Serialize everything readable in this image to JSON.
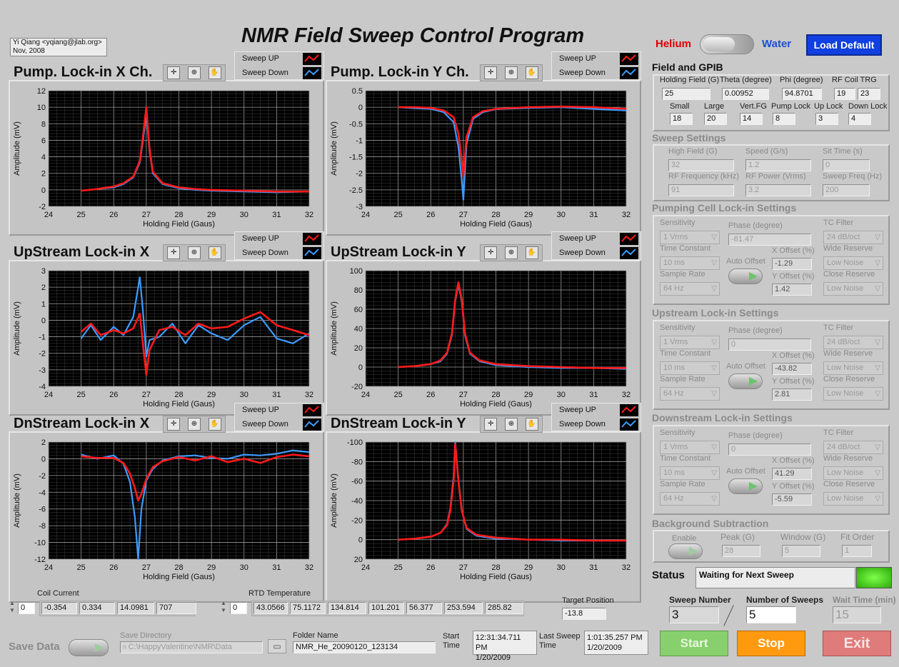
{
  "author": {
    "line1": "Yi Qiang <yqiang@jlab.org>",
    "line2": "Nov, 2008"
  },
  "app_title": "NMR Field Sweep Control Program",
  "mode": {
    "left": "Helium",
    "right": "Water",
    "left_color": "#e00000",
    "right_color": "#1a4fd0"
  },
  "load_default": "Load Default",
  "legend": {
    "up": "Sweep UP",
    "down": "Sweep Down",
    "up_color": "#ff1a1a",
    "down_color": "#3c9cff"
  },
  "graphs": [
    {
      "title": "Pump. Lock-in X Ch.",
      "xlabel": "Holding Field (Gaus)",
      "ylabel": "Amplitude (mV)"
    },
    {
      "title": "Pump. Lock-in Y Ch.",
      "xlabel": "Holding Field (Gaus)",
      "ylabel": "Amplitude (mV)"
    },
    {
      "title": "UpStream Lock-in X",
      "xlabel": "Holding Field (Gaus)",
      "ylabel": "Amplitude (mV)"
    },
    {
      "title": "UpStream Lock-in Y",
      "xlabel": "Holding Field (Gaus)",
      "ylabel": "Amplitude (mV)"
    },
    {
      "title": "DnStream Lock-in X",
      "xlabel": "Holding Field (Gaus)",
      "ylabel": "Amplitude (mV)"
    },
    {
      "title": "DnStream Lock-in Y",
      "xlabel": "Holding Field (Gaus)",
      "ylabel": "Amplitude (mV)"
    }
  ],
  "chart_data": [
    {
      "type": "line",
      "title": "Pump. Lock-in X Ch.",
      "xlabel": "Holding Field (Gaus)",
      "ylabel": "Amplitude (mV)",
      "xlim": [
        24,
        32
      ],
      "ylim": [
        -2,
        12
      ],
      "xticks": [
        24,
        25,
        26,
        27,
        28,
        29,
        30,
        31,
        32
      ],
      "yticks": [
        -2,
        0,
        2,
        4,
        6,
        8,
        10,
        12
      ],
      "series": [
        {
          "name": "Sweep UP",
          "x": [
            25,
            25.5,
            26,
            26.3,
            26.6,
            26.8,
            26.9,
            27,
            27.1,
            27.2,
            27.5,
            28,
            28.5,
            29,
            30,
            31,
            32
          ],
          "y": [
            -0.1,
            0.1,
            0.4,
            0.8,
            1.6,
            3.5,
            6.5,
            10,
            5,
            2.2,
            0.8,
            0.3,
            0.1,
            0,
            -0.1,
            -0.2,
            -0.2
          ]
        },
        {
          "name": "Sweep Down",
          "x": [
            25,
            25.5,
            26,
            26.3,
            26.6,
            26.8,
            26.9,
            27,
            27.1,
            27.2,
            27.5,
            28,
            28.5,
            29,
            30,
            31,
            32
          ],
          "y": [
            -0.1,
            0.1,
            0.3,
            0.7,
            1.5,
            3.3,
            6,
            9.2,
            4.7,
            2,
            0.7,
            0.2,
            0,
            -0.1,
            -0.2,
            -0.3,
            -0.2
          ]
        }
      ]
    },
    {
      "type": "line",
      "title": "Pump. Lock-in Y Ch.",
      "xlabel": "Holding Field (Gaus)",
      "ylabel": "Amplitude (mV)",
      "xlim": [
        24,
        32
      ],
      "ylim": [
        -3,
        0.5
      ],
      "xticks": [
        24,
        25,
        26,
        27,
        28,
        29,
        30,
        31,
        32
      ],
      "yticks": [
        -3,
        -2.5,
        -2,
        -1.5,
        -1,
        -0.5,
        0,
        0.5
      ],
      "series": [
        {
          "name": "Sweep UP",
          "x": [
            25,
            25.5,
            26,
            26.4,
            26.7,
            26.85,
            26.95,
            27,
            27.1,
            27.3,
            27.6,
            28,
            29,
            30,
            31,
            32
          ],
          "y": [
            0,
            0,
            -0.02,
            -0.1,
            -0.3,
            -0.8,
            -1.6,
            -2.1,
            -0.9,
            -0.3,
            -0.12,
            -0.05,
            0,
            0.02,
            0,
            -0.05
          ]
        },
        {
          "name": "Sweep Down",
          "x": [
            25,
            25.5,
            26,
            26.4,
            26.7,
            26.85,
            26.95,
            27,
            27.1,
            27.3,
            27.6,
            28,
            29,
            30,
            31,
            32
          ],
          "y": [
            0,
            -0.03,
            -0.05,
            -0.15,
            -0.45,
            -1.2,
            -2.2,
            -2.8,
            -1.1,
            -0.35,
            -0.15,
            -0.06,
            -0.02,
            0,
            -0.05,
            -0.1
          ]
        }
      ]
    },
    {
      "type": "line",
      "title": "UpStream Lock-in X",
      "xlabel": "Holding Field (Gaus)",
      "ylabel": "Amplitude (mV)",
      "xlim": [
        24,
        32
      ],
      "ylim": [
        -4,
        3
      ],
      "xticks": [
        24,
        25,
        26,
        27,
        28,
        29,
        30,
        31,
        32
      ],
      "yticks": [
        -4,
        -3,
        -2,
        -1,
        0,
        1,
        2,
        3
      ],
      "series": [
        {
          "name": "Sweep UP",
          "x": [
            25,
            25.3,
            25.6,
            26,
            26.3,
            26.6,
            26.8,
            26.9,
            27,
            27.1,
            27.4,
            27.8,
            28.2,
            28.6,
            29,
            29.5,
            30,
            30.5,
            31,
            31.5,
            32
          ],
          "y": [
            -0.7,
            -0.2,
            -0.9,
            -0.6,
            -0.8,
            -0.5,
            0.4,
            -1.5,
            -3.3,
            -1.8,
            -0.6,
            -0.4,
            -0.9,
            -0.2,
            -0.5,
            -0.4,
            0.1,
            0.5,
            -0.3,
            -0.6,
            -0.9
          ]
        },
        {
          "name": "Sweep Down",
          "x": [
            25,
            25.3,
            25.6,
            26,
            26.3,
            26.6,
            26.8,
            26.9,
            27,
            27.1,
            27.4,
            27.8,
            28.2,
            28.6,
            29,
            29.5,
            30,
            30.5,
            31,
            31.5,
            32
          ],
          "y": [
            -1.1,
            -0.3,
            -1.2,
            -0.4,
            -0.9,
            0.2,
            2.6,
            0.5,
            -2.2,
            -1.2,
            -1,
            -0.2,
            -1.4,
            -0.3,
            -0.8,
            -1.2,
            -0.3,
            0.2,
            -1.1,
            -1.4,
            -0.8
          ]
        }
      ]
    },
    {
      "type": "line",
      "title": "UpStream Lock-in Y",
      "xlabel": "Holding Field (Gaus)",
      "ylabel": "Amplitude (mV)",
      "xlim": [
        24,
        32
      ],
      "ylim": [
        -20,
        100
      ],
      "xticks": [
        24,
        25,
        26,
        27,
        28,
        29,
        30,
        31,
        32
      ],
      "yticks": [
        -20,
        0,
        20,
        40,
        60,
        80,
        100
      ],
      "series": [
        {
          "name": "Sweep UP",
          "x": [
            25,
            25.5,
            26,
            26.3,
            26.5,
            26.65,
            26.75,
            26.85,
            26.95,
            27.05,
            27.2,
            27.5,
            28,
            29,
            30,
            31,
            32
          ],
          "y": [
            0,
            1,
            3,
            7,
            15,
            35,
            70,
            88,
            70,
            35,
            15,
            7,
            3,
            1,
            0,
            -1,
            -1
          ]
        },
        {
          "name": "Sweep Down",
          "x": [
            25,
            25.5,
            26,
            26.3,
            26.5,
            26.65,
            26.75,
            26.85,
            26.95,
            27.05,
            27.2,
            27.5,
            28,
            29,
            30,
            31,
            32
          ],
          "y": [
            0,
            1,
            3,
            6,
            14,
            33,
            68,
            86,
            68,
            33,
            14,
            6,
            2,
            0,
            -1,
            -1,
            -2
          ]
        }
      ]
    },
    {
      "type": "line",
      "title": "DnStream Lock-in X",
      "xlabel": "Holding Field (Gaus)",
      "ylabel": "Amplitude (mV)",
      "xlim": [
        24,
        32
      ],
      "ylim": [
        -12,
        2
      ],
      "xticks": [
        24,
        25,
        26,
        27,
        28,
        29,
        30,
        31,
        32
      ],
      "yticks": [
        -12,
        -10,
        -8,
        -6,
        -4,
        -2,
        0,
        2
      ],
      "series": [
        {
          "name": "Sweep UP",
          "x": [
            25,
            25.5,
            26,
            26.3,
            26.5,
            26.65,
            26.75,
            26.85,
            27,
            27.2,
            27.5,
            28,
            28.5,
            29,
            29.5,
            30,
            30.5,
            31,
            31.5,
            32
          ],
          "y": [
            0.3,
            0.1,
            0.1,
            -0.5,
            -1.8,
            -3.5,
            -5,
            -4.2,
            -2.4,
            -1,
            -0.3,
            0.2,
            -0.2,
            0.3,
            -0.4,
            0,
            -0.5,
            0.2,
            0.5,
            0.3
          ]
        },
        {
          "name": "Sweep Down",
          "x": [
            25,
            25.5,
            26,
            26.3,
            26.5,
            26.65,
            26.75,
            26.85,
            27,
            27.2,
            27.5,
            28,
            28.5,
            29,
            29.5,
            30,
            30.5,
            31,
            31.5,
            32
          ],
          "y": [
            0.5,
            0,
            0.4,
            -0.6,
            -2.8,
            -7,
            -12,
            -6,
            -2.6,
            -1.2,
            -0.2,
            0.3,
            0.4,
            0.1,
            0,
            0.5,
            0.4,
            0.6,
            1,
            0.8
          ]
        }
      ]
    },
    {
      "type": "line",
      "title": "DnStream Lock-in Y",
      "xlabel": "Holding Field (Gaus)",
      "ylabel": "Amplitude (mV)",
      "xlim": [
        24,
        32
      ],
      "ylim": [
        20,
        -100
      ],
      "xticks": [
        24,
        25,
        26,
        27,
        28,
        29,
        30,
        31,
        32
      ],
      "yticks": [
        20,
        0,
        -20,
        -40,
        -60,
        -80,
        -100
      ],
      "series": [
        {
          "name": "Sweep UP",
          "x": [
            25,
            25.5,
            26,
            26.3,
            26.5,
            26.6,
            26.7,
            26.75,
            26.85,
            26.95,
            27.1,
            27.4,
            28,
            29,
            30,
            31,
            32
          ],
          "y": [
            0,
            -1,
            -3,
            -7,
            -15,
            -30,
            -60,
            -98,
            -60,
            -30,
            -12,
            -5,
            -2,
            0,
            0,
            1,
            1
          ]
        },
        {
          "name": "Sweep Down",
          "x": [
            25,
            25.5,
            26,
            26.3,
            26.5,
            26.6,
            26.7,
            26.75,
            26.85,
            26.95,
            27.1,
            27.4,
            28,
            29,
            30,
            31,
            32
          ],
          "y": [
            0,
            -1,
            -3,
            -7,
            -16,
            -32,
            -65,
            -100,
            -62,
            -30,
            -11,
            -4,
            -1,
            0,
            1,
            1,
            1
          ]
        }
      ]
    }
  ],
  "field_gpib": {
    "header": "Field and GPIB",
    "row1": [
      {
        "label": "Holding Field (G)",
        "value": "25"
      },
      {
        "label": "Theta (degree)",
        "value": "0.00952"
      },
      {
        "label": "Phi (degree)",
        "value": "94.8701"
      },
      {
        "label": "RF Coil TRG",
        "value": "19",
        "value2": "23"
      }
    ],
    "row2": [
      {
        "label": "Small",
        "value": "18"
      },
      {
        "label": "Large",
        "value": "20"
      },
      {
        "label": "Vert.FG",
        "value": "14"
      },
      {
        "label": "Pump Lock",
        "value": "8"
      },
      {
        "label": "Up Lock",
        "value": "3"
      },
      {
        "label": "Down Lock",
        "value": "4"
      }
    ]
  },
  "sweep": {
    "header": "Sweep Settings",
    "fields": [
      {
        "label": "High Field (G)",
        "value": "32"
      },
      {
        "label": "Speed (G/s)",
        "value": "1.2"
      },
      {
        "label": "Sit Time (s)",
        "value": "0"
      },
      {
        "label": "RF Frequency (kHz)",
        "value": "91"
      },
      {
        "label": "RF Power (Vrms)",
        "value": "3.2"
      },
      {
        "label": "Sweep Freq (Hz)",
        "value": "200"
      }
    ]
  },
  "lockins": [
    {
      "header": "Pumping Cell Lock-in Settings",
      "phase": "-81.47",
      "xoff": "-1.29",
      "yoff": "1.42"
    },
    {
      "header": "Upstream Lock-in Settings",
      "phase": "0",
      "xoff": "-43.82",
      "yoff": "2.81"
    },
    {
      "header": "Downstream Lock-in Settings",
      "phase": "0",
      "xoff": "41.29",
      "yoff": "-5.59"
    }
  ],
  "lockin_labels": {
    "sensitivity": "Sensitivity",
    "sens_val": "1 Vrms",
    "phase": "Phase (degree)",
    "tc_filter": "TC Filter",
    "tc_filter_val": "24 dB/oct",
    "time_const": "Time Constant",
    "time_const_val": "10 ms",
    "auto_offset": "Auto Offset",
    "xoff": "X Offset (%)",
    "wide": "Wide Reserve",
    "wide_val": "Low Noise",
    "sample_rate": "Sample Rate",
    "sample_rate_val": "64 Hz",
    "yoff": "Y Offset (%)",
    "close": "Close Reserve",
    "close_val": "Low Noise"
  },
  "background": {
    "header": "Background Subtraction",
    "enable": "Enable",
    "peak_label": "Peak (G)",
    "peak": "28",
    "window_label": "Window (G)",
    "window": "5",
    "fit_label": "Fit Order",
    "fit": "1"
  },
  "status": {
    "label": "Status",
    "text": "Waiting for Next Sweep"
  },
  "sweeps": {
    "number_label": "Sweep Number",
    "number": "3",
    "count_label": "Number of Sweeps",
    "count": "5",
    "wait_label": "Wait Time (min)",
    "wait": "15"
  },
  "buttons": {
    "start": "Start",
    "stop": "Stop",
    "exit": "Exit"
  },
  "coil": {
    "label": "Coil Current",
    "index": "0",
    "values": [
      "-0.354",
      "0.334",
      "14.0981",
      "707"
    ]
  },
  "rtd": {
    "label": "RTD Temperature",
    "index": "0",
    "values": [
      "43.0566",
      "75.1172",
      "134.814",
      "101.201",
      "56.377",
      "253.594",
      "285.82"
    ]
  },
  "target": {
    "label": "Target Position",
    "value": "-13.8"
  },
  "save": {
    "label": "Save Data",
    "dir_label": "Save Directory",
    "dir": "C:\\HappyValentine\\NMR\\Data",
    "folder_label": "Folder Name",
    "folder": "NMR_He_20090120_123134"
  },
  "start_time": {
    "label": "Start Time",
    "line1": "12:31:34.711 PM",
    "line2": "1/20/2009"
  },
  "last_sweep": {
    "label": "Last Sweep Time",
    "line1": "1:01:35.257 PM",
    "line2": "1/20/2009"
  }
}
